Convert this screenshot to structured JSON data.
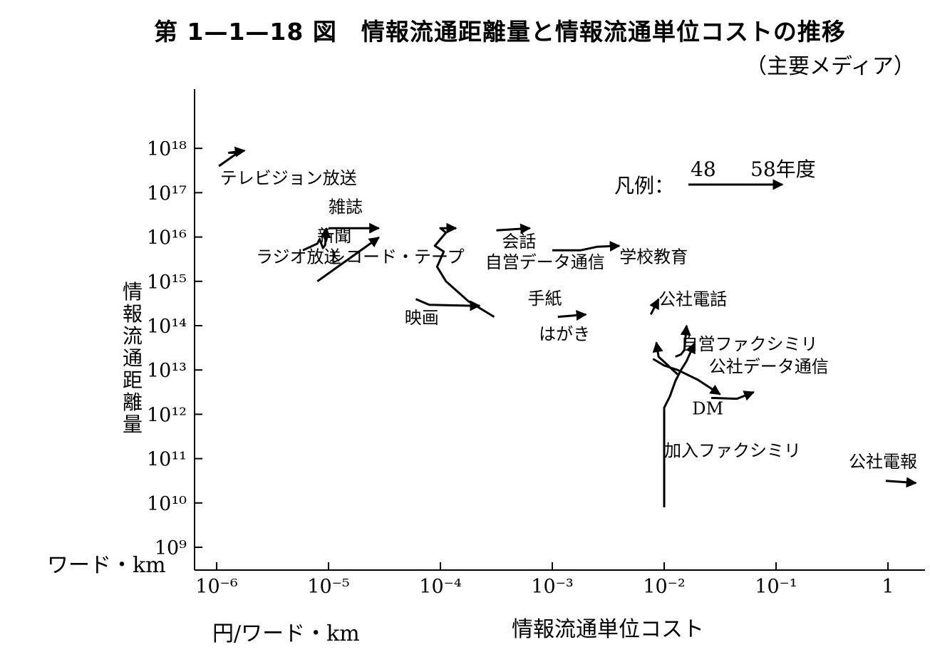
{
  "title": "第 1—1—18 図　情報流通距離量と情報流通単位コストの推移",
  "subtitle": "（主要メディア）",
  "chart_data": {
    "type": "line",
    "ylabel": "情報流通距離量",
    "yunit": "ワード・km",
    "xlabel": "情報流通単位コスト",
    "xunit": "円/ワード・km",
    "xscale": "log",
    "yscale": "log",
    "xlim": [
      -6.2,
      0.25
    ],
    "ylim": [
      8.5,
      19.3
    ],
    "x_ticks": [
      -6,
      -5,
      -4,
      -3,
      -2,
      -1,
      0
    ],
    "x_tick_labels": [
      "10⁻⁶",
      "10⁻⁵",
      "10⁻⁴",
      "10⁻³",
      "10⁻²",
      "10⁻¹",
      "1"
    ],
    "y_ticks": [
      9,
      10,
      11,
      12,
      13,
      14,
      15,
      16,
      17,
      18
    ],
    "y_tick_labels": [
      "10⁹",
      "10¹⁰",
      "10¹¹",
      "10¹²",
      "10¹³",
      "10¹⁴",
      "10¹⁵",
      "10¹⁶",
      "10¹⁷",
      "10¹⁸"
    ],
    "legend": {
      "prefix": "凡例：",
      "start_label": "48",
      "end_label": "58年度",
      "placement": "top-right"
    },
    "series": [
      {
        "name": "テレビジョン放送",
        "points": [
          [
            -5.98,
            17.6
          ],
          [
            -5.81,
            17.9
          ],
          [
            -5.89,
            17.9
          ],
          [
            -5.75,
            17.95
          ]
        ]
      },
      {
        "name": "雑誌",
        "points": [
          [
            -5.0,
            16.2
          ],
          [
            -4.55,
            16.2
          ]
        ]
      },
      {
        "name": "新聞",
        "points": [
          [
            -5.1,
            15.0
          ],
          [
            -4.55,
            15.99
          ]
        ]
      },
      {
        "name": "ラジオ放送",
        "points": [
          [
            -5.23,
            15.7
          ],
          [
            -5.1,
            15.85
          ],
          [
            -5.08,
            15.95
          ],
          [
            -5.05,
            15.75
          ],
          [
            -5.03,
            15.82
          ],
          [
            -5.02,
            16.2
          ]
        ]
      },
      {
        "name": "レコード・テープ",
        "points": [
          [
            -4.34,
            15.08
          ]
        ]
      },
      {
        "name": "映画",
        "points": [
          [
            -4.22,
            14.6
          ],
          [
            -4.1,
            14.47
          ],
          [
            -3.75,
            14.45
          ],
          [
            -3.65,
            14.45
          ]
        ]
      },
      {
        "name": "会話",
        "points": [
          [
            -3.5,
            16.15
          ],
          [
            -3.2,
            16.2
          ]
        ]
      },
      {
        "name": "自営データ通信",
        "points": [
          [
            -3.0,
            15.7
          ],
          [
            -2.75,
            15.7
          ],
          [
            -2.6,
            15.78
          ],
          [
            -2.4,
            15.8
          ]
        ]
      },
      {
        "name": "手紙",
        "points": [
          [
            -2.95,
            14.2
          ],
          [
            -2.7,
            14.25
          ]
        ]
      },
      {
        "name": "はがき",
        "points": [
          [
            -3.52,
            14.2
          ],
          [
            -3.75,
            14.55
          ],
          [
            -3.95,
            15.0
          ],
          [
            -4.03,
            15.33
          ],
          [
            -3.97,
            15.67
          ],
          [
            -4.05,
            15.8
          ],
          [
            -3.95,
            16.1
          ],
          [
            -4.0,
            16.2
          ],
          [
            -3.86,
            16.2
          ]
        ]
      },
      {
        "name": "公社電話",
        "points": [
          [
            -2.12,
            14.25
          ],
          [
            -2.05,
            14.6
          ]
        ]
      },
      {
        "name": "自営ファクシミリ",
        "points": [
          [
            -1.9,
            13.3
          ],
          [
            -1.85,
            13.35
          ],
          [
            -1.82,
            13.45
          ],
          [
            -1.8,
            14.0
          ]
        ]
      },
      {
        "name": "公社データ通信",
        "points": [
          [
            -2.1,
            13.25
          ],
          [
            -2.0,
            13.1
          ],
          [
            -1.88,
            13.0
          ],
          [
            -1.7,
            12.78
          ],
          [
            -1.5,
            12.45
          ]
        ]
      },
      {
        "name": "DM",
        "points": [
          [
            -1.58,
            12.37
          ],
          [
            -1.35,
            12.35
          ],
          [
            -1.2,
            12.5
          ]
        ]
      },
      {
        "name": "加入ファクシミリ",
        "points": [
          [
            -2.0,
            9.9
          ],
          [
            -2.0,
            12.15
          ],
          [
            -1.95,
            12.4
          ],
          [
            -1.9,
            12.75
          ],
          [
            -1.85,
            13.0
          ],
          [
            -1.8,
            13.2
          ],
          [
            -1.73,
            13.6
          ]
        ]
      },
      {
        "name": "加入ファクシミリ",
        "points": [
          [
            -1.88,
            12.9
          ],
          [
            -2.05,
            13.3
          ],
          [
            -2.07,
            13.62
          ]
        ]
      },
      {
        "name": "公社電報",
        "points": [
          [
            -0.02,
            10.5
          ],
          [
            0.25,
            10.45
          ]
        ]
      }
    ],
    "labels": [
      {
        "text": "テレビジョン放送",
        "x": -5.97,
        "y": 17.2
      },
      {
        "text": "雑誌",
        "x": -5.0,
        "y": 16.55
      },
      {
        "text": "新聞",
        "x": -5.1,
        "y": 15.9
      },
      {
        "text": "ラジオ放送",
        "x": -5.65,
        "y": 15.42
      },
      {
        "text": "レコード・テープ",
        "x": -5.0,
        "y": 15.42
      },
      {
        "text": "会話",
        "x": -3.45,
        "y": 15.77
      },
      {
        "text": "自営データ通信",
        "x": -3.6,
        "y": 15.3
      },
      {
        "text": "学校教育",
        "x": -2.4,
        "y": 15.42
      },
      {
        "text": "映画",
        "x": -4.32,
        "y": 14.05
      },
      {
        "text": "手紙",
        "x": -3.22,
        "y": 14.48
      },
      {
        "text": "はがき",
        "x": -3.12,
        "y": 13.68
      },
      {
        "text": "公社電話",
        "x": -2.05,
        "y": 14.47
      },
      {
        "text": "自営ファクシミリ",
        "x": -1.85,
        "y": 13.45
      },
      {
        "text": "公社データ通信",
        "x": -1.6,
        "y": 12.95
      },
      {
        "text": "DM",
        "x": -1.75,
        "y": 12.0
      },
      {
        "text": "加入ファクシミリ",
        "x": -2.0,
        "y": 11.05
      },
      {
        "text": "公社電報",
        "x": -0.35,
        "y": 10.8
      }
    ]
  }
}
